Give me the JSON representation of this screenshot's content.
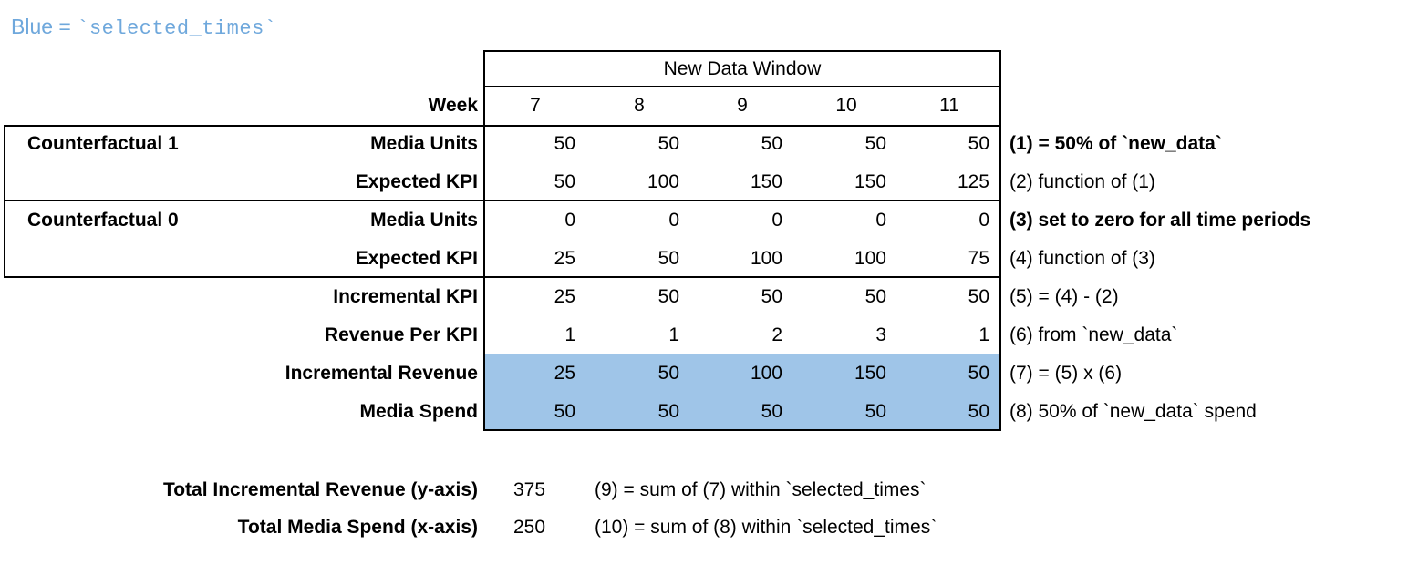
{
  "legend": {
    "prefix": "Blue = ",
    "code": "`selected_times`"
  },
  "colors": {
    "highlight_blue": "#9fc5e8",
    "legend_blue": "#6fa8dc",
    "border_black": "#000000"
  },
  "table": {
    "window_title": "New Data Window",
    "week_label": "Week",
    "weeks": [
      "7",
      "8",
      "9",
      "10",
      "11"
    ],
    "rows": [
      {
        "group": "Counterfactual 1",
        "label": "Media Units",
        "values": [
          "50",
          "50",
          "50",
          "50",
          "50"
        ],
        "note": "(1) = 50% of `new_data`"
      },
      {
        "group": "",
        "label": "Expected KPI",
        "values": [
          "50",
          "100",
          "150",
          "150",
          "125"
        ],
        "note": "(2) function of (1)"
      },
      {
        "group": "Counterfactual 0",
        "label": "Media Units",
        "values": [
          "0",
          "0",
          "0",
          "0",
          "0"
        ],
        "note": "(3) set to zero for all time periods"
      },
      {
        "group": "",
        "label": "Expected KPI",
        "values": [
          "25",
          "50",
          "100",
          "100",
          "75"
        ],
        "note": "(4) function of (3)"
      },
      {
        "group": "",
        "label": "Incremental KPI",
        "values": [
          "25",
          "50",
          "50",
          "50",
          "50"
        ],
        "note": "(5) = (4) - (2)"
      },
      {
        "group": "",
        "label": "Revenue Per KPI",
        "values": [
          "1",
          "1",
          "2",
          "3",
          "1"
        ],
        "note": "(6) from `new_data`"
      },
      {
        "group": "",
        "label": "Incremental Revenue",
        "values": [
          "25",
          "50",
          "100",
          "150",
          "50"
        ],
        "note": "(7) = (5) x (6)"
      },
      {
        "group": "",
        "label": "Media Spend",
        "values": [
          "50",
          "50",
          "50",
          "50",
          "50"
        ],
        "note": "(8) 50% of `new_data` spend"
      }
    ]
  },
  "totals": [
    {
      "label": "Total Incremental Revenue (y-axis)",
      "value": "375",
      "note": "(9) = sum of (7) within `selected_times`"
    },
    {
      "label": "Total Media Spend (x-axis)",
      "value": "250",
      "note": "(10) = sum of (8) within `selected_times`"
    }
  ]
}
